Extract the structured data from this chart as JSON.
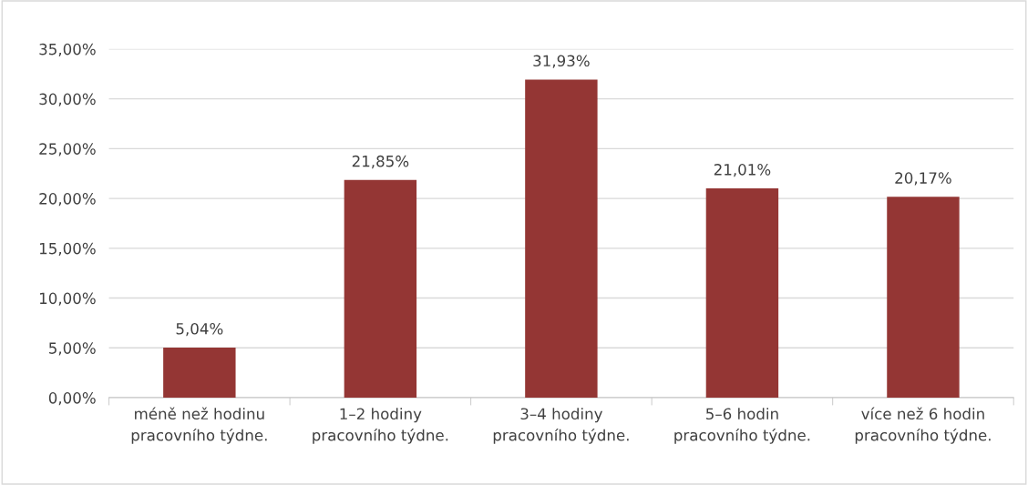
{
  "chart_data": {
    "type": "bar",
    "categories": [
      "méně než hodinu\npracovního týdne.",
      "1–2 hodiny\npracovního týdne.",
      "3–4 hodiny\npracovního týdne.",
      "5–6 hodin\npracovního týdne.",
      "více než 6 hodin\npracovního týdne."
    ],
    "values": [
      5.04,
      21.85,
      31.93,
      21.01,
      20.17
    ],
    "value_labels": [
      "5,04%",
      "21,85%",
      "31,93%",
      "21,01%",
      "20,17%"
    ],
    "color": "#943634",
    "ylim": [
      0,
      35
    ],
    "yticks": [
      {
        "value": 0,
        "label": "0,00%"
      },
      {
        "value": 5,
        "label": "5,00%"
      },
      {
        "value": 10,
        "label": "10,00%"
      },
      {
        "value": 15,
        "label": "15,00%"
      },
      {
        "value": 20,
        "label": "20,00%"
      },
      {
        "value": 25,
        "label": "25,00%"
      },
      {
        "value": 30,
        "label": "30,00%"
      },
      {
        "value": 35,
        "label": "35,00%"
      }
    ],
    "grid": "y"
  }
}
